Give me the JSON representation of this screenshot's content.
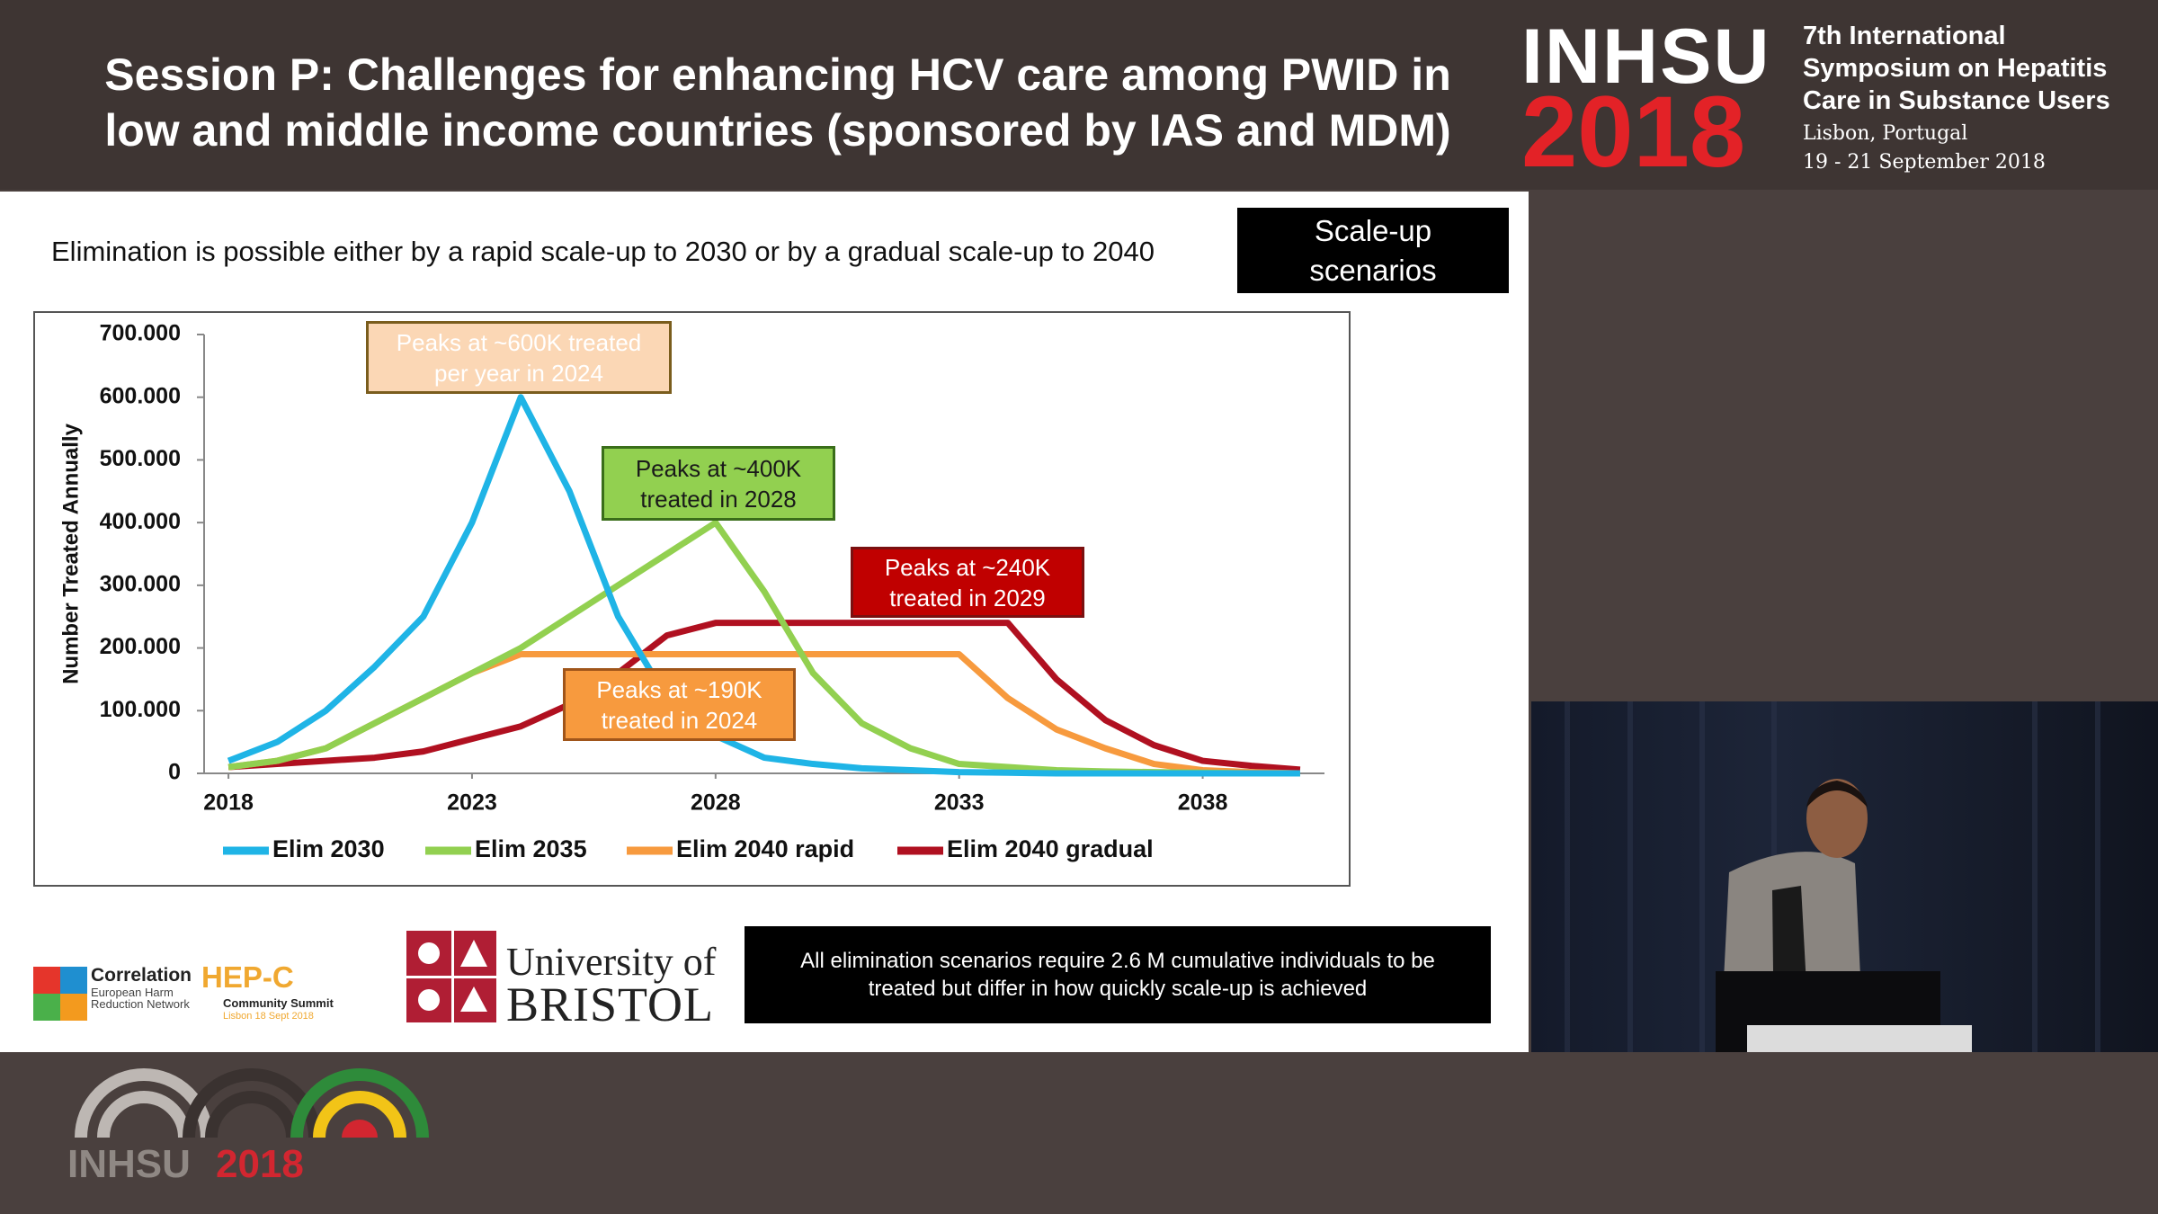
{
  "header": {
    "title": "Session P: Challenges for enhancing HCV care among PWID in low and middle income countries (sponsored by IAS and MDM)",
    "logo_name": "INHSU",
    "logo_year": "2018",
    "symposium": "7th International Symposium on Hepatitis Care in Substance Users",
    "location": "Lisbon, Portugal",
    "dates": "19 - 21 September 2018"
  },
  "slide": {
    "subtitle": "Elimination is possible either by a rapid scale-up to 2030 or by a gradual scale-up to 2040",
    "tag": "Scale-up scenarios",
    "note": "All elimination scenarios require 2.6 M cumulative individuals to be treated but differ in how quickly scale-up is achieved",
    "logos": {
      "correlation": "Correlation",
      "correlation_sub": "European Harm Reduction Network",
      "hepc": "HEP-C",
      "hepc_sub": "Community Summit",
      "hepc_date": "Lisbon 18 Sept 2018",
      "university": "University of",
      "bristol": "BRISTOL"
    }
  },
  "chart_data": {
    "type": "line",
    "y_label": "Number Treated Annually",
    "x": [
      2018,
      2019,
      2020,
      2021,
      2022,
      2023,
      2024,
      2025,
      2026,
      2027,
      2028,
      2029,
      2030,
      2031,
      2032,
      2033,
      2034,
      2035,
      2036,
      2037,
      2038,
      2039,
      2040
    ],
    "xlim": [
      2017.5,
      2040.5
    ],
    "xticks": [
      2018,
      2023,
      2028,
      2033,
      2038
    ],
    "ylim": [
      0,
      700000
    ],
    "yticks": [
      0,
      {
        "value": 100000,
        "label": "100.000"
      },
      {
        "value": 200000,
        "label": "200.000"
      },
      {
        "value": 300000,
        "label": "300.000"
      },
      {
        "value": 400000,
        "label": "400.000"
      },
      {
        "value": 500000,
        "label": "500.000"
      },
      {
        "value": 600000,
        "label": "600.000"
      },
      {
        "value": 700000,
        "label": "700.000"
      }
    ],
    "series": [
      {
        "name": "Elim 2030",
        "color": "#1fb4e6",
        "values": [
          20000,
          50000,
          100000,
          170000,
          250000,
          400000,
          600000,
          450000,
          250000,
          120000,
          60000,
          25000,
          15000,
          8000,
          5000,
          2000,
          1000,
          0,
          0,
          0,
          0,
          0,
          0
        ]
      },
      {
        "name": "Elim 2035",
        "color": "#92d050",
        "values": [
          10000,
          20000,
          40000,
          80000,
          120000,
          160000,
          200000,
          250000,
          300000,
          350000,
          400000,
          290000,
          160000,
          80000,
          40000,
          15000,
          10000,
          5000,
          3000,
          2000,
          1000,
          0,
          0
        ]
      },
      {
        "name": "Elim 2040 rapid",
        "color": "#f79a3e",
        "values": [
          10000,
          20000,
          40000,
          80000,
          120000,
          160000,
          190000,
          190000,
          190000,
          190000,
          190000,
          190000,
          190000,
          190000,
          190000,
          190000,
          120000,
          70000,
          40000,
          15000,
          5000,
          2000,
          0
        ]
      },
      {
        "name": "Elim 2040 gradual",
        "color": "#b01020",
        "values": [
          10000,
          15000,
          20000,
          25000,
          35000,
          55000,
          75000,
          110000,
          160000,
          220000,
          240000,
          240000,
          240000,
          240000,
          240000,
          240000,
          240000,
          150000,
          85000,
          45000,
          20000,
          12000,
          6000
        ]
      }
    ],
    "annotations": [
      "Peaks at ~600K treated per year in 2024",
      "Peaks at ~400K treated in 2028",
      "Peaks at ~240K treated in 2029",
      "Peaks at ~190K treated in 2024"
    ]
  }
}
